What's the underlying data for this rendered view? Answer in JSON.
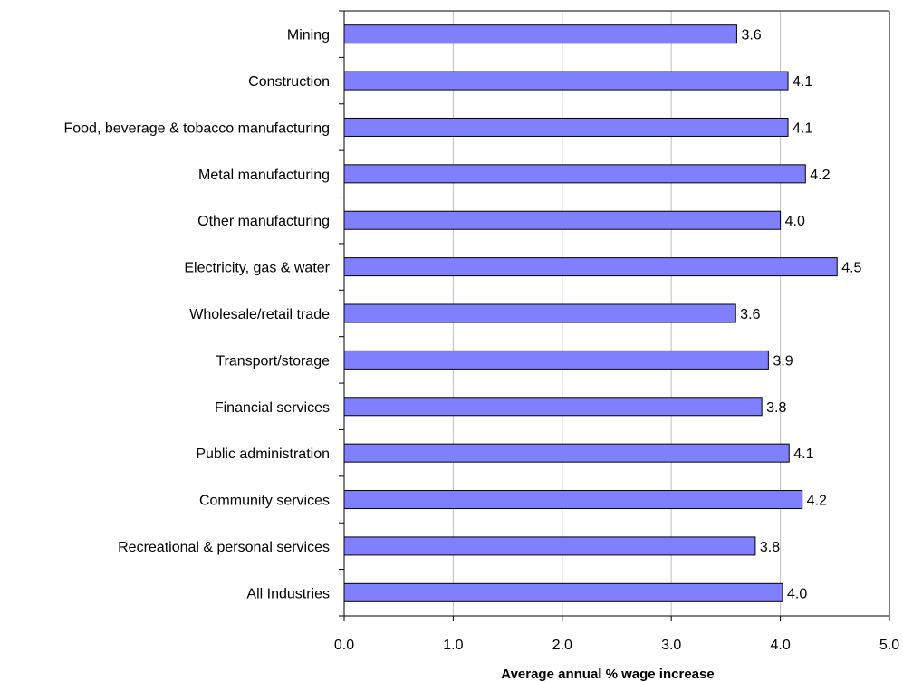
{
  "chart_data": {
    "type": "bar",
    "orientation": "horizontal",
    "categories": [
      "Mining",
      "Construction",
      "Food, beverage & tobacco manufacturing",
      "Metal manufacturing",
      "Other manufacturing",
      "Electricity, gas & water",
      "Wholesale/retail trade",
      "Transport/storage",
      "Financial services",
      "Public administration",
      "Community services",
      "Recreational & personal services",
      "All Industries"
    ],
    "values": [
      3.6,
      4.07,
      4.07,
      4.23,
      4.0,
      4.52,
      3.59,
      3.89,
      3.83,
      4.08,
      4.2,
      3.77,
      4.02
    ],
    "data_labels": [
      "3.6",
      "4.1",
      "4.1",
      "4.2",
      "4.0",
      "4.5",
      "3.6",
      "3.9",
      "3.8",
      "4.1",
      "4.2",
      "3.8",
      "4.0"
    ],
    "xlabel": "Average annual % wage increase",
    "xlim": [
      0,
      5
    ],
    "xticks": [
      "0.0",
      "1.0",
      "2.0",
      "3.0",
      "4.0",
      "5.0"
    ],
    "grid": "vertical",
    "bar_color": "#8080ff",
    "bar_edge_color": "#000000",
    "grid_color": "#c0c0c0"
  }
}
